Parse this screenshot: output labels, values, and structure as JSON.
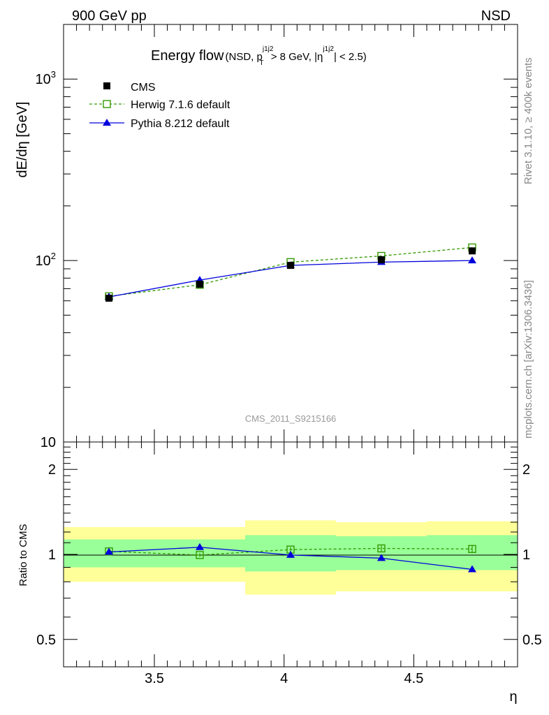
{
  "header": {
    "left_label": "900 GeV pp",
    "right_label": "NSD"
  },
  "side_labels": {
    "rivet": "Rivet 3.1.10, ≥ 400k events",
    "source": "mcplots.cern.ch [arXiv:1306.3436]"
  },
  "chart_data": [
    {
      "type": "line",
      "panel": "main",
      "title": "Energy flow",
      "title_cut": {
        "prefix": "(NSD, p",
        "sup1": "j1j2",
        "sub1": "T",
        "middle": " > 8 GeV, |η",
        "sup2": "j1j2",
        "suffix": "| < 2.5)"
      },
      "ylabel": "dE/dη [GeV]",
      "xlabel": "",
      "yscale": "log",
      "ylim": [
        10,
        2000
      ],
      "xlim": [
        3.15,
        4.9
      ],
      "yticks": [
        {
          "value": 10,
          "label": "10",
          "sup": ""
        },
        {
          "value": 100,
          "label": "10",
          "sup": "2"
        },
        {
          "value": 1000,
          "label": "10",
          "sup": "3"
        }
      ],
      "watermark": "CMS_2011_S9215166",
      "x": [
        3.325,
        3.675,
        4.025,
        4.375,
        4.725
      ],
      "series": [
        {
          "name": "CMS",
          "style": "data",
          "color": "#000000",
          "marker": "square-filled",
          "values": [
            62,
            74,
            94,
            101,
            113
          ]
        },
        {
          "name": "Herwig 7.1.6 default",
          "style": "dashed",
          "color": "#339900",
          "marker": "square-open",
          "values": [
            63.5,
            73.5,
            98,
            106,
            118
          ]
        },
        {
          "name": "Pythia 8.212 default",
          "style": "solid",
          "color": "#0000dd",
          "marker": "triangle",
          "values": [
            63,
            78,
            94,
            98,
            100
          ]
        }
      ]
    },
    {
      "type": "line",
      "panel": "ratio",
      "ylabel": "Ratio to CMS",
      "xlabel": "η",
      "yscale": "log",
      "ylim": [
        0.4,
        2.5
      ],
      "xlim": [
        3.15,
        4.9
      ],
      "yticks": [
        {
          "value": 0.5,
          "label": "0.5"
        },
        {
          "value": 1,
          "label": "1"
        },
        {
          "value": 2,
          "label": "2"
        }
      ],
      "xticks": [
        {
          "value": 3.5,
          "label": "3.5"
        },
        {
          "value": 4,
          "label": "4"
        },
        {
          "value": 4.5,
          "label": "4.5"
        }
      ],
      "bins": [
        [
          3.15,
          3.5
        ],
        [
          3.5,
          3.85
        ],
        [
          3.85,
          4.2
        ],
        [
          4.2,
          4.55
        ],
        [
          4.55,
          4.9
        ]
      ],
      "band_outer": [
        [
          0.8,
          1.25
        ],
        [
          0.8,
          1.25
        ],
        [
          0.72,
          1.32
        ],
        [
          0.74,
          1.3
        ],
        [
          0.74,
          1.31
        ]
      ],
      "band_inner": [
        [
          0.9,
          1.13
        ],
        [
          0.9,
          1.13
        ],
        [
          0.87,
          1.17
        ],
        [
          0.88,
          1.16
        ],
        [
          0.88,
          1.17
        ]
      ],
      "x": [
        3.325,
        3.675,
        4.025,
        4.375,
        4.725
      ],
      "series": [
        {
          "name": "Herwig 7.1.6 default",
          "style": "dashed",
          "color": "#339900",
          "marker": "square-open",
          "values": [
            1.025,
            0.995,
            1.04,
            1.05,
            1.045
          ],
          "errors": [
            0.015,
            0.015,
            0.02,
            0.025,
            0.03
          ]
        },
        {
          "name": "Pythia 8.212 default",
          "style": "solid",
          "color": "#0000dd",
          "marker": "triangle",
          "values": [
            1.02,
            1.06,
            0.995,
            0.97,
            0.885
          ],
          "errors": [
            0.01,
            0.01,
            0.012,
            0.015,
            0.02
          ]
        }
      ]
    }
  ]
}
